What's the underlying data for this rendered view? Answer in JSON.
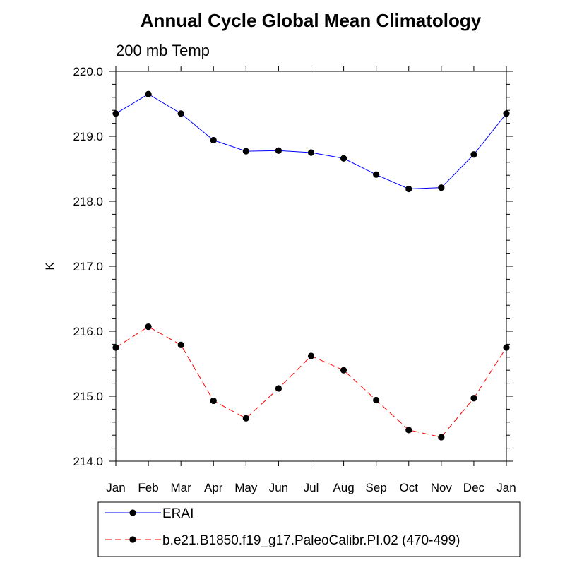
{
  "chart_data": {
    "type": "line",
    "title": "Annual Cycle Global Mean Climatology",
    "subtitle": "200 mb Temp",
    "xlabel": "",
    "ylabel": "K",
    "categories": [
      "Jan",
      "Feb",
      "Mar",
      "Apr",
      "May",
      "Jun",
      "Jul",
      "Aug",
      "Sep",
      "Oct",
      "Nov",
      "Dec",
      "Jan"
    ],
    "ylim": [
      214.0,
      220.0
    ],
    "yticks": [
      "214.0",
      "215.0",
      "216.0",
      "217.0",
      "218.0",
      "219.0",
      "220.0"
    ],
    "grid": false,
    "legend_position": "bottom",
    "series": [
      {
        "name": "ERAI",
        "color": "#0000ff",
        "line_style": "solid",
        "marker": "filled-circle",
        "values": [
          219.35,
          219.65,
          219.35,
          218.94,
          218.77,
          218.78,
          218.75,
          218.66,
          218.41,
          218.19,
          218.21,
          218.72,
          219.35
        ]
      },
      {
        "name": "b.e21.B1850.f19_g17.PaleoCalibr.PI.02 (470-499)",
        "color": "#ff0000",
        "line_style": "dashed",
        "marker": "filled-circle",
        "values": [
          215.75,
          216.07,
          215.79,
          214.93,
          214.66,
          215.12,
          215.62,
          215.4,
          214.94,
          214.48,
          214.37,
          214.97,
          215.75
        ]
      }
    ]
  }
}
